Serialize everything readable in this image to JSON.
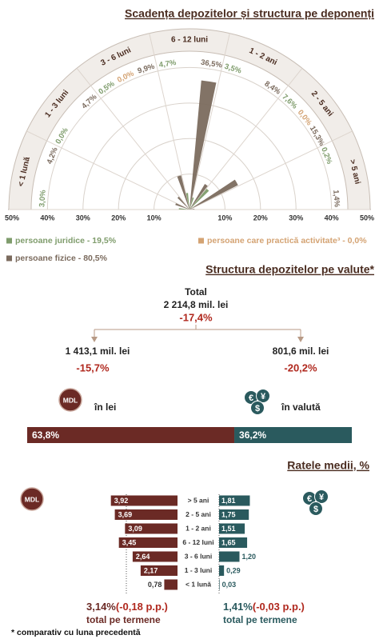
{
  "chart_data": [
    {
      "type": "polar-bar",
      "title": "Scadența depozitelor și structura pe deponenți",
      "categories": [
        "< 1 lună",
        "1 - 3 luni",
        "3 - 6 luni",
        "6 - 12 luni",
        "1 - 2 ani",
        "2 - 5 ani",
        "> 5 ani"
      ],
      "series": [
        {
          "name": "persoane juridice - 19,5%",
          "color": "#7f9c6c",
          "values": [
            3.0,
            0.0,
            0.5,
            4.7,
            3.5,
            7.6,
            0.2
          ],
          "value_labels": [
            "3,0%",
            "0,0%",
            "0,5%",
            "4,7%",
            "3,5%",
            "7,6%",
            "0,2%"
          ]
        },
        {
          "name": "persoane care practică activitate³ - 0,0%",
          "color": "#d4a373",
          "values": [
            null,
            null,
            0.0,
            null,
            null,
            0.0,
            null
          ],
          "value_labels": [
            null,
            null,
            "0,0%",
            null,
            null,
            "0,0%",
            null
          ]
        },
        {
          "name": "persoane fizice - 80,5%",
          "color": "#7b6b5e",
          "values": [
            4.2,
            4.7,
            9.9,
            36.5,
            8.4,
            15.3,
            1.4
          ],
          "value_labels": [
            "4,2%",
            "4,7%",
            "9,9%",
            "36,5%",
            "8,4%",
            "15,3%",
            "1,4%"
          ]
        }
      ],
      "rlim": [
        0,
        50
      ],
      "rticks": [
        {
          "value": 10,
          "label": "10%"
        },
        {
          "value": 20,
          "label": "20%"
        },
        {
          "value": 30,
          "label": "30%"
        },
        {
          "value": 40,
          "label": "40%"
        },
        {
          "value": 50,
          "label": "50%"
        }
      ]
    },
    {
      "type": "stacked-bar",
      "title": "Structura depozitelor pe valute*",
      "total": {
        "label": "Total",
        "value": "2 214,8 mil. lei",
        "change": "-17,4%"
      },
      "branches": [
        {
          "value": "1 413,1 mil. lei",
          "change": "-15,7%"
        },
        {
          "value": "801,6 mil. lei",
          "change": "-20,2%"
        }
      ],
      "mdl_icon": "MDL",
      "currency_icon": [
        "€",
        "¥",
        "$"
      ],
      "series": [
        {
          "name": "în lei",
          "color": "#6b2a25",
          "values": [
            63.8
          ],
          "value_labels": [
            "63,8%"
          ]
        },
        {
          "name": "în valută",
          "color": "#2a5a5e",
          "values": [
            36.2
          ],
          "value_labels": [
            "36,2%"
          ]
        }
      ],
      "xlim": [
        0,
        100
      ]
    },
    {
      "type": "diverging-bar",
      "title": "Ratele medii, %",
      "categories": [
        "> 5 ani",
        "2 - 5 ani",
        "1 - 2 ani",
        "6 - 12 luni",
        "3 - 6 luni",
        "1 - 3 luni",
        "< 1 lună"
      ],
      "series": [
        {
          "color": "#6b2a25",
          "values": [
            3.92,
            3.69,
            3.09,
            3.45,
            2.64,
            2.17,
            0.78
          ],
          "value_labels": [
            "3,92",
            "3,69",
            "3,09",
            "3,45",
            "2,64",
            "2,17",
            "0,78"
          ]
        },
        {
          "color": "#2a5a5e",
          "values": [
            1.81,
            1.75,
            1.51,
            1.65,
            1.2,
            0.29,
            0.03
          ],
          "value_labels": [
            "1,81",
            "1,75",
            "1,51",
            "1,65",
            "1,20",
            "0,29",
            "0,03"
          ]
        }
      ],
      "xlim": [
        0,
        4
      ],
      "totals": [
        {
          "value": "3,14%",
          "change": "(-0,18 p.p.)",
          "label": "total pe termene"
        },
        {
          "value": "1,41%",
          "change": "(-0,03 p.p.)",
          "label": "total pe termene"
        }
      ],
      "note": "* comparativ cu luna precedentă"
    }
  ]
}
